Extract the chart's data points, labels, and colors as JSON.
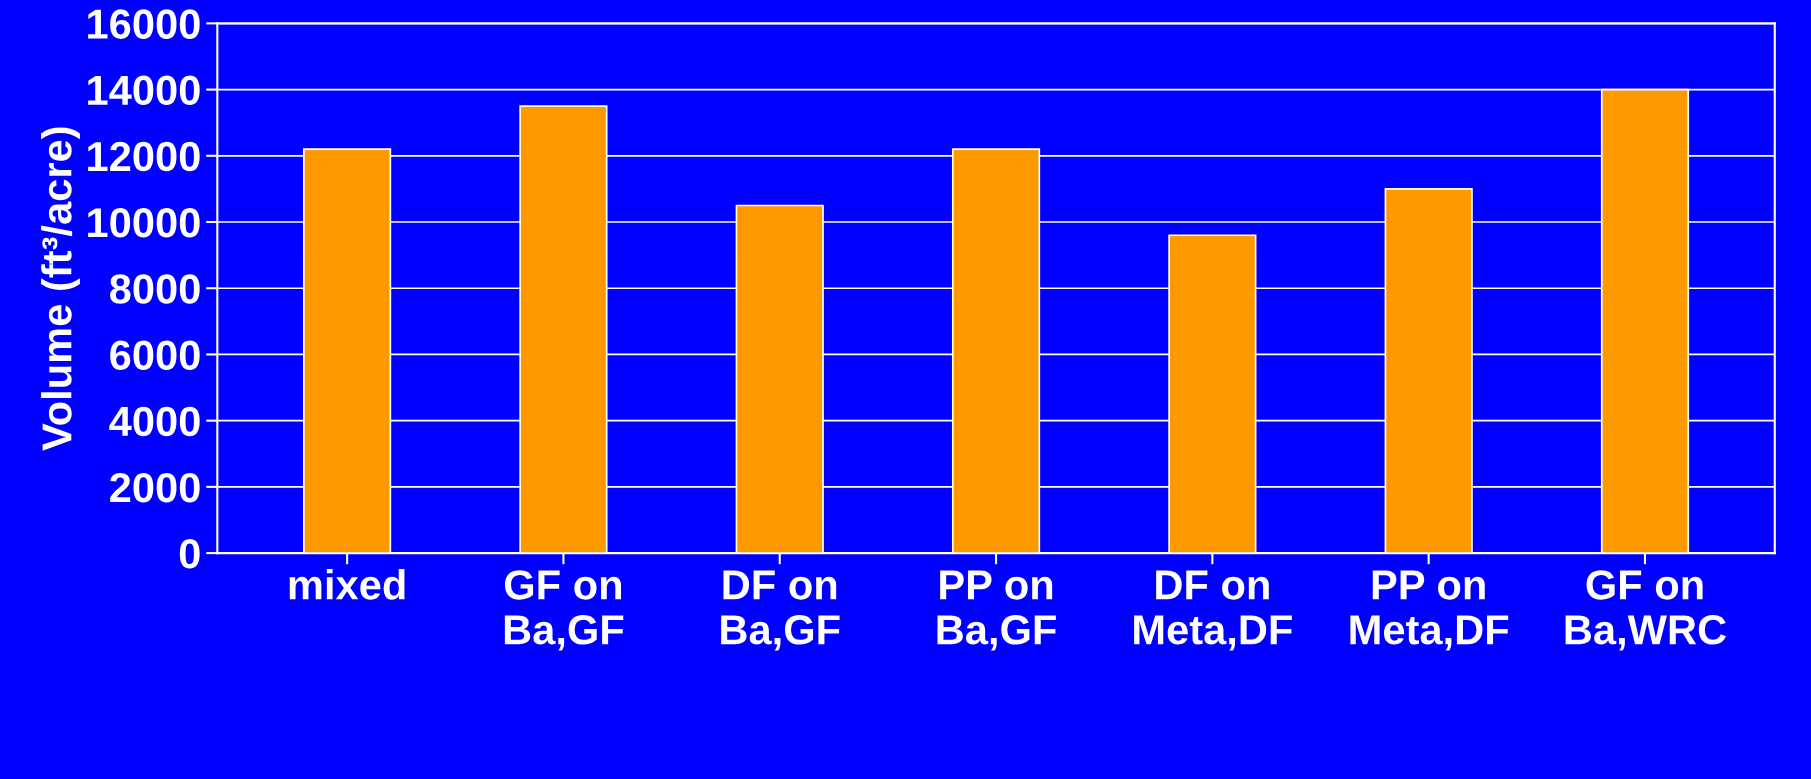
{
  "chart_data": {
    "type": "bar",
    "ylabel": "Volume (ft³/acre)",
    "categories": [
      "mixed",
      "GF on\nBa,GF",
      "DF on\nBa,GF",
      "PP on\nBa,GF",
      "DF on\nMeta,DF",
      "PP on\nMeta,DF",
      "GF on\nBa,WRC"
    ],
    "values": [
      12200,
      13500,
      10500,
      12200,
      9600,
      11000,
      14000
    ],
    "color": "#ff9900",
    "ylim": [
      0,
      16000
    ],
    "yticks": [
      0,
      2000,
      4000,
      6000,
      8000,
      10000,
      12000,
      14000,
      16000
    ],
    "grid": "y"
  }
}
